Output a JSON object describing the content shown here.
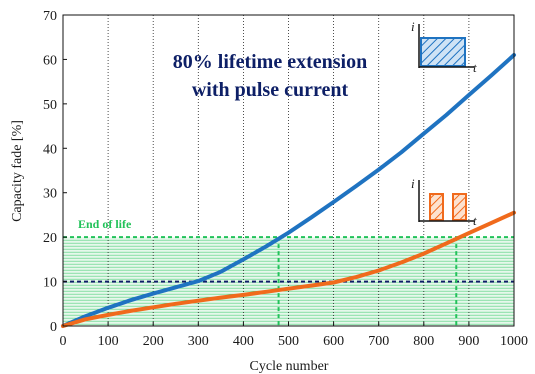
{
  "chart_data": {
    "type": "line",
    "title": "",
    "xlabel": "Cycle number",
    "ylabel": "Capacity fade [%]",
    "xlim": [
      0,
      1000
    ],
    "ylim": [
      0,
      70
    ],
    "xticks": [
      "0",
      "100",
      "200",
      "300",
      "400",
      "500",
      "600",
      "700",
      "800",
      "900",
      "1000"
    ],
    "yticks": [
      "0",
      "10",
      "20",
      "30",
      "40",
      "50",
      "60",
      "70"
    ],
    "vertical_grid": true,
    "annotation_lines": [
      "80%  lifetime extension",
      "with pulse current"
    ],
    "end_of_life_label": "End of life",
    "end_of_life_fade": 20,
    "reference_fade": 10,
    "end_of_life_band": [
      0,
      20
    ],
    "series": [
      {
        "color": "#1f73c1",
        "x": [
          0,
          50,
          100,
          150,
          200,
          250,
          300,
          350,
          400,
          450,
          500,
          550,
          600,
          650,
          700,
          750,
          800,
          850,
          900,
          950,
          1000
        ],
        "y": [
          0,
          2.2,
          4.1,
          5.8,
          7.3,
          8.7,
          10.1,
          12.2,
          15.0,
          17.9,
          21.0,
          24.4,
          27.9,
          31.5,
          35.2,
          39.1,
          43.3,
          47.5,
          52.0,
          56.4,
          61.0
        ]
      },
      {
        "color": "#f06a1c",
        "x": [
          0,
          50,
          100,
          150,
          200,
          250,
          300,
          350,
          400,
          450,
          500,
          550,
          600,
          650,
          700,
          750,
          800,
          850,
          900,
          950,
          1000
        ],
        "y": [
          0,
          1.5,
          2.5,
          3.4,
          4.2,
          5.0,
          5.7,
          6.4,
          7.0,
          7.7,
          8.4,
          9.1,
          9.8,
          11.0,
          12.5,
          14.3,
          16.3,
          18.6,
          20.9,
          23.2,
          25.5
        ]
      }
    ],
    "crossings_at_end_of_life": [
      {
        "series_color": "#1f73c1",
        "x": 478
      },
      {
        "series_color": "#f06a1c",
        "x": 872
      }
    ],
    "insets": [
      {
        "kind": "constant-current",
        "color": "#1f73c1",
        "axis_label_x": "t",
        "axis_label_y": "i"
      },
      {
        "kind": "pulse-current",
        "color": "#f06a1c",
        "axis_label_x": "t",
        "axis_label_y": "i"
      }
    ],
    "colors": {
      "band": "#22c25a",
      "reference": "#0d1f66",
      "grid": "#222222"
    }
  }
}
